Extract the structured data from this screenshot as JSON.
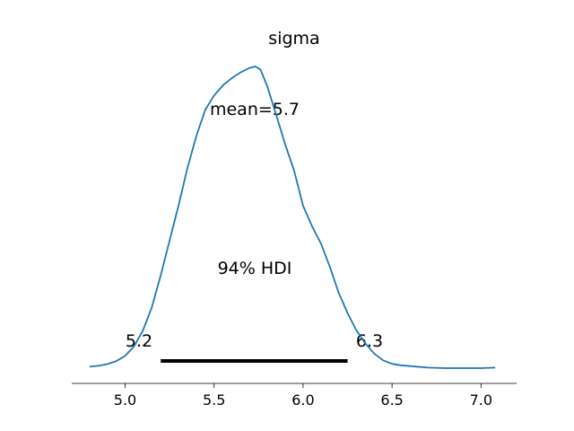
{
  "chart_data": {
    "type": "line",
    "title": "sigma",
    "xlabel": "",
    "ylabel": "",
    "xlim": [
      4.7,
      7.2
    ],
    "ylim": [
      0,
      1.08
    ],
    "xticks": [
      5.0,
      5.5,
      6.0,
      6.5,
      7.0
    ],
    "xtick_labels": [
      "5.0",
      "5.5",
      "6.0",
      "6.5",
      "7.0"
    ],
    "show_y_axis": false,
    "grid": false,
    "series": [
      {
        "color": "#1f77b4",
        "x": [
          4.8,
          4.85,
          4.9,
          4.95,
          5.0,
          5.05,
          5.1,
          5.15,
          5.2,
          5.25,
          5.3,
          5.35,
          5.4,
          5.45,
          5.5,
          5.55,
          5.6,
          5.65,
          5.7,
          5.73,
          5.76,
          5.8,
          5.85,
          5.9,
          5.95,
          6.0,
          6.05,
          6.1,
          6.15,
          6.2,
          6.25,
          6.3,
          6.35,
          6.4,
          6.45,
          6.5,
          6.55,
          6.6,
          6.7,
          6.8,
          6.9,
          7.0,
          7.08
        ],
        "y": [
          0.005,
          0.008,
          0.014,
          0.024,
          0.042,
          0.075,
          0.13,
          0.21,
          0.32,
          0.44,
          0.56,
          0.69,
          0.8,
          0.89,
          0.94,
          0.975,
          1.0,
          1.02,
          1.035,
          1.04,
          1.03,
          0.97,
          0.87,
          0.77,
          0.68,
          0.56,
          0.49,
          0.43,
          0.35,
          0.26,
          0.19,
          0.13,
          0.085,
          0.05,
          0.027,
          0.015,
          0.01,
          0.007,
          0.002,
          0.0,
          0.0,
          0.0,
          0.002
        ]
      }
    ],
    "annotations": {
      "mean_label": "mean=5.7",
      "mean_value": 5.7,
      "hdi_label": "94% HDI",
      "hdi_interval": [
        5.2,
        6.25
      ],
      "hdi_low_label": "5.2",
      "hdi_high_label": "6.3"
    }
  }
}
